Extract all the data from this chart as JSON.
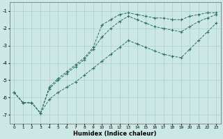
{
  "xlabel": "Humidex (Indice chaleur)",
  "background_color": "#cce8e4",
  "line_color": "#2a6e62",
  "grid_color": "#aacfcb",
  "xlim": [
    -0.5,
    23.5
  ],
  "ylim": [
    -7.5,
    -0.5
  ],
  "yticks": [
    -7,
    -6,
    -5,
    -4,
    -3,
    -2,
    -1
  ],
  "xticks": [
    0,
    1,
    2,
    3,
    4,
    5,
    6,
    7,
    8,
    9,
    10,
    11,
    12,
    13,
    14,
    15,
    16,
    17,
    18,
    19,
    20,
    21,
    22,
    23
  ],
  "line1_x": [
    0,
    1,
    2,
    3,
    4,
    5,
    6,
    7,
    8,
    9,
    10,
    11,
    12,
    13,
    14,
    15,
    16,
    17,
    18,
    19,
    20,
    21,
    22,
    23
  ],
  "line1_y": [
    -5.7,
    -6.3,
    -6.3,
    -6.9,
    -5.4,
    -4.9,
    -4.5,
    -4.1,
    -3.7,
    -3.1,
    -1.8,
    -1.5,
    -1.2,
    -1.1,
    -1.2,
    -1.3,
    -1.4,
    -1.4,
    -1.5,
    -1.5,
    -1.3,
    -1.2,
    -1.1,
    -1.1
  ],
  "line2_x": [
    0,
    1,
    2,
    3,
    4,
    5,
    6,
    7,
    8,
    9,
    10,
    11,
    12,
    13,
    14,
    15,
    16,
    17,
    18,
    19,
    20,
    21,
    22,
    23
  ],
  "line2_y": [
    -5.7,
    -6.3,
    -6.3,
    -6.9,
    -5.5,
    -5.0,
    -4.6,
    -4.2,
    -3.8,
    -3.2,
    -2.5,
    -2.0,
    -1.6,
    -1.3,
    -1.5,
    -1.7,
    -1.9,
    -2.0,
    -2.1,
    -2.2,
    -1.9,
    -1.6,
    -1.4,
    -1.2
  ],
  "line3_x": [
    0,
    1,
    2,
    3,
    4,
    5,
    6,
    7,
    8,
    9,
    10,
    11,
    12,
    13,
    14,
    15,
    16,
    17,
    18,
    19,
    20,
    21,
    22,
    23
  ],
  "line3_y": [
    -5.7,
    -6.3,
    -6.3,
    -6.9,
    -6.1,
    -5.7,
    -5.4,
    -5.1,
    -4.7,
    -4.3,
    -3.9,
    -3.5,
    -3.1,
    -2.7,
    -2.9,
    -3.1,
    -3.3,
    -3.5,
    -3.6,
    -3.7,
    -3.2,
    -2.7,
    -2.2,
    -1.7
  ]
}
